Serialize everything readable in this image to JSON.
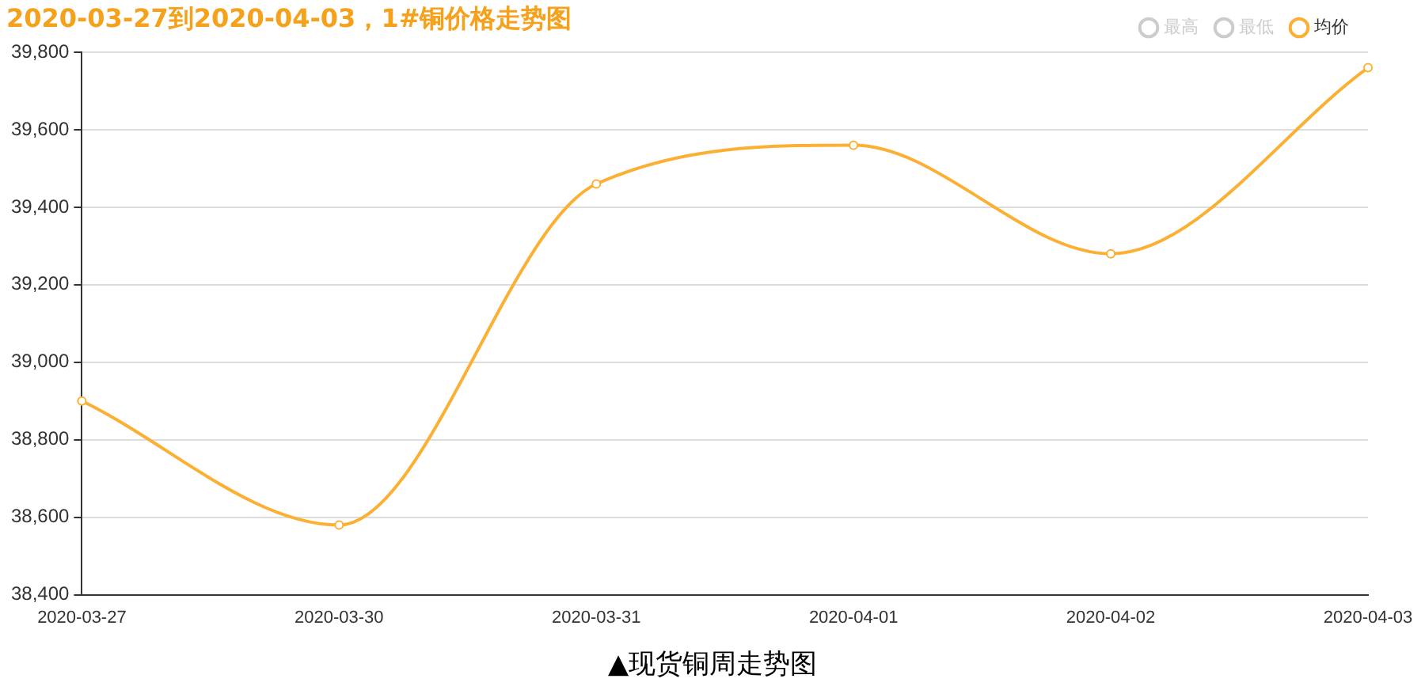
{
  "chart_data": {
    "type": "line",
    "title": "2020-03-27到2020-04-03，1#铜价格走势图",
    "categories": [
      "2020-03-27",
      "2020-03-30",
      "2020-03-31",
      "2020-04-01",
      "2020-04-02",
      "2020-04-03"
    ],
    "series": [
      {
        "name": "最高",
        "color": "#cccccc",
        "values": [
          null,
          null,
          null,
          null,
          null,
          null
        ]
      },
      {
        "name": "最低",
        "color": "#cccccc",
        "values": [
          null,
          null,
          null,
          null,
          null,
          null
        ]
      },
      {
        "name": "均价",
        "color": "#fbb034",
        "values": [
          38900,
          38580,
          39460,
          39560,
          39280,
          39760
        ]
      }
    ],
    "ylim": [
      38400,
      39800
    ],
    "yticks": [
      {
        "value": 38400,
        "label": "38,400"
      },
      {
        "value": 38600,
        "label": "38,600"
      },
      {
        "value": 38800,
        "label": "38,800"
      },
      {
        "value": 39000,
        "label": "39,000"
      },
      {
        "value": 39200,
        "label": "39,200"
      },
      {
        "value": 39400,
        "label": "39,400"
      },
      {
        "value": 39600,
        "label": "39,600"
      },
      {
        "value": 39800,
        "label": "39,800"
      }
    ],
    "grid": "y",
    "legend": "top right",
    "marker": "circle",
    "line_style": "solid",
    "annotations": [
      "▲现货铜周走势图"
    ]
  }
}
